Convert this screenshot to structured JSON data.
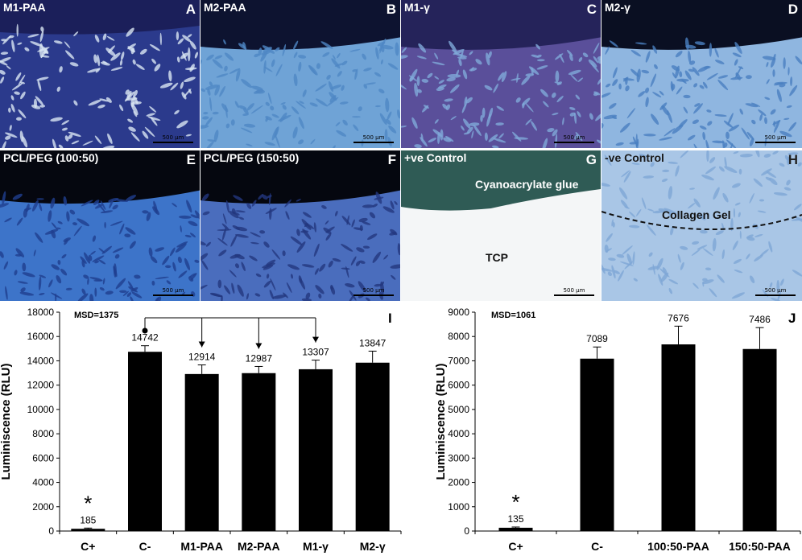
{
  "panels": [
    {
      "id": "A",
      "title": "M1-PAA",
      "letter": "A",
      "scale": "500 µm",
      "bg": "#2b3a8c",
      "cells": "#d9e6f2",
      "top": "#1b1f5a"
    },
    {
      "id": "B",
      "title": "M2-PAA",
      "letter": "B",
      "scale": "500 µm",
      "bg": "#6fa3d6",
      "cells": "#4f87c4",
      "top": "#0d1330"
    },
    {
      "id": "C",
      "title": "M1-γ",
      "letter": "C",
      "scale": "500 µm",
      "bg": "#5a4f9a",
      "cells": "#7fa9d8",
      "top": "#25235a"
    },
    {
      "id": "D",
      "title": "M2-γ",
      "letter": "D",
      "scale": "500 µm",
      "bg": "#8fb6e0",
      "cells": "#4a7fc0",
      "top": "#0a0f22"
    },
    {
      "id": "E",
      "title": "PCL/PEG (100:50)",
      "letter": "E",
      "scale": "500 µm",
      "bg": "#3d74c9",
      "cells": "#1f3f8f",
      "top": "#05070f"
    },
    {
      "id": "F",
      "title": "PCL/PEG (150:50)",
      "letter": "F",
      "scale": "500 µm",
      "bg": "#4a6dbd",
      "cells": "#23377e",
      "top": "#05070f"
    },
    {
      "id": "G",
      "title": "+ve Control",
      "letter": "G",
      "scale": "500 µm",
      "bg": "#f4f6f7",
      "cells": "#e8eef0",
      "top": "#2f5b55",
      "labels": [
        "Cyanoacrylate glue",
        "TCP"
      ]
    },
    {
      "id": "H",
      "title": "-ve Control",
      "letter": "H",
      "scale": "500 µm",
      "bg": "#a9c6e6",
      "cells": "#7ea6d6",
      "top": "#a9c6e6",
      "labels": [
        "Collagen Gel"
      ]
    }
  ],
  "chart_data": [
    {
      "type": "bar",
      "panel_letter": "I",
      "annotation": "MSD=1375",
      "ylabel": "Luminiscence (RLU)",
      "ylim": [
        0,
        18000
      ],
      "yticks": [
        0,
        2000,
        4000,
        6000,
        8000,
        10000,
        12000,
        14000,
        16000,
        18000
      ],
      "categories": [
        "C+",
        "C-",
        "M1-PAA",
        "M2-PAA",
        "M1-γ",
        "M2-γ"
      ],
      "values": [
        185,
        14742,
        12914,
        12987,
        13307,
        13847
      ],
      "errors": [
        60,
        500,
        750,
        550,
        750,
        950
      ],
      "value_labels": [
        "185",
        "14742",
        "12914",
        "12987",
        "13307",
        "13847"
      ],
      "significance": {
        "index": 0,
        "symbol": "*"
      },
      "comparison": {
        "from": 1,
        "to": [
          2,
          3,
          4
        ]
      }
    },
    {
      "type": "bar",
      "panel_letter": "J",
      "annotation": "MSD=1061",
      "ylabel": "Luminiscence (RLU)",
      "ylim": [
        0,
        9000
      ],
      "yticks": [
        0,
        1000,
        2000,
        3000,
        4000,
        5000,
        6000,
        7000,
        8000,
        9000
      ],
      "categories": [
        "C+",
        "C-",
        "100:50-PAA",
        "150:50-PAA"
      ],
      "values": [
        135,
        7089,
        7676,
        7486
      ],
      "errors": [
        30,
        480,
        750,
        880
      ],
      "value_labels": [
        "135",
        "7089",
        "7676",
        "7486"
      ],
      "significance": {
        "index": 0,
        "symbol": "*"
      }
    }
  ]
}
